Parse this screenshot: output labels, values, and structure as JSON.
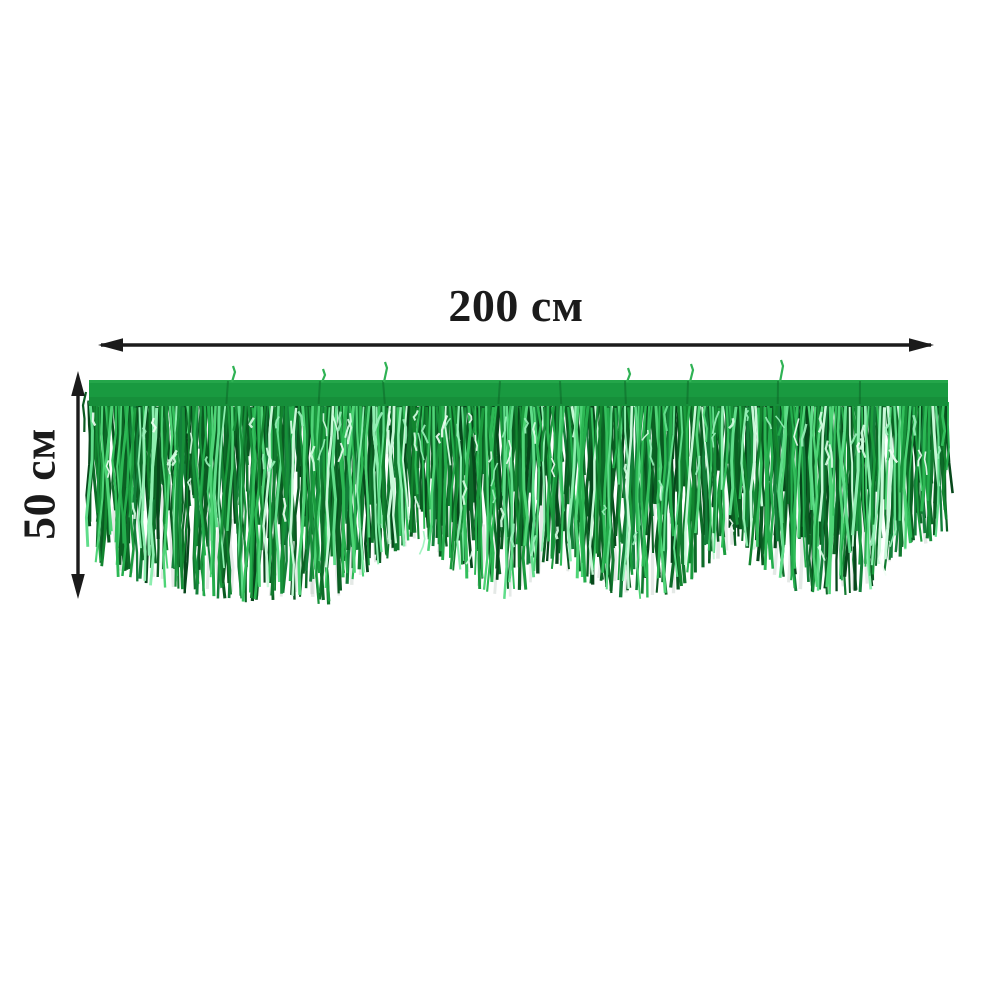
{
  "page": {
    "background": "#ffffff"
  },
  "dimensions": {
    "width_label": "200 см",
    "height_label": "50 см",
    "line_color": "#1b1b1b",
    "text_color": "#1b1b1b"
  },
  "garland": {
    "band_color": "#199a40",
    "band_shade_color": "#0c6b26",
    "band_highlight_color": "#2fb254",
    "crease_color": "#0a5e24",
    "foil_palette_back": [
      "#07471b",
      "#0a5a21",
      "#0d6b28",
      "#117a2f",
      "#0b6123",
      "#14803a"
    ],
    "foil_palette_front": [
      "#1b9c3e",
      "#24ad4c",
      "#33bf5c",
      "#17913a",
      "#4ed476",
      "#8deeaf",
      "#c8f8d8",
      "#12852f",
      "#2cb854",
      "#60dd8a"
    ],
    "sparkle_colors": [
      "#d8ffe6",
      "#9af2bb",
      "#f2fff6"
    ],
    "shadow_color": "#b9c4bd"
  }
}
